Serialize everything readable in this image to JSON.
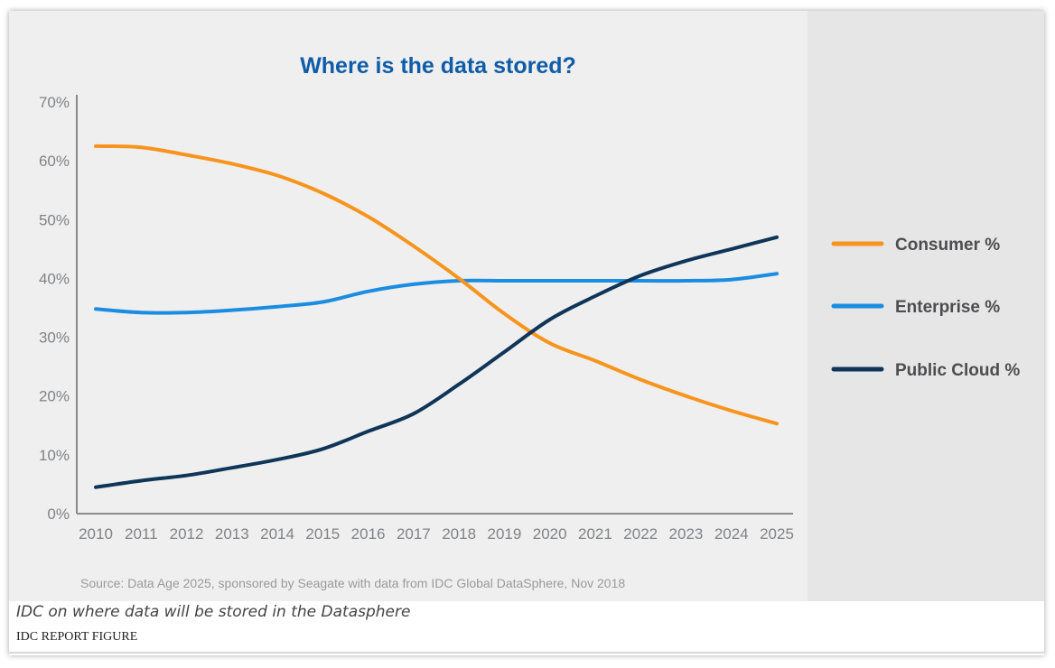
{
  "chart_data": {
    "type": "line",
    "title": "Where is the data stored?",
    "xlabel": "",
    "ylabel": "",
    "x": [
      "2010",
      "2011",
      "2012",
      "2013",
      "2014",
      "2015",
      "2016",
      "2017",
      "2018",
      "2019",
      "2020",
      "2021",
      "2022",
      "2023",
      "2024",
      "2025"
    ],
    "ylim": [
      0,
      70
    ],
    "yticks": [
      {
        "value": 0,
        "label": "0%"
      },
      {
        "value": 10,
        "label": "10%"
      },
      {
        "value": 20,
        "label": "20%"
      },
      {
        "value": 30,
        "label": "30%"
      },
      {
        "value": 40,
        "label": "40%"
      },
      {
        "value": 50,
        "label": "50%"
      },
      {
        "value": 60,
        "label": "60%"
      },
      {
        "value": 70,
        "label": "70%"
      }
    ],
    "grid": false,
    "legend_position": "right",
    "series": [
      {
        "name": "Consumer %",
        "color": "#F7941D",
        "values": [
          62.5,
          62.3,
          61,
          59.5,
          57.5,
          54.5,
          50.5,
          45.5,
          40,
          34,
          29,
          26,
          22.8,
          20,
          17.5,
          15.3
        ]
      },
      {
        "name": "Enterprise %",
        "color": "#1B8DE0",
        "values": [
          34.8,
          34.2,
          34.2,
          34.6,
          35.2,
          36,
          37.8,
          39,
          39.6,
          39.6,
          39.6,
          39.6,
          39.6,
          39.6,
          39.8,
          40.8
        ]
      },
      {
        "name": "Public Cloud %",
        "color": "#0F3559",
        "values": [
          4.5,
          5.6,
          6.5,
          7.8,
          9.2,
          11,
          14,
          17,
          22,
          27.5,
          33,
          37,
          40.5,
          43,
          45,
          47
        ]
      }
    ],
    "source": "Source: Data Age 2025, sponsored by Seagate with data from IDC Global DataSphere, Nov 2018"
  },
  "caption": "IDC on where data will be stored in the Datasphere",
  "credit": "IDC REPORT FIGURE",
  "colors": {
    "title": "#0F5CA8",
    "axis_text": "#808285",
    "legend_text": "#4D4D4F",
    "figure_bg": "#efefef",
    "legend_bg": "#e6e6e6"
  }
}
